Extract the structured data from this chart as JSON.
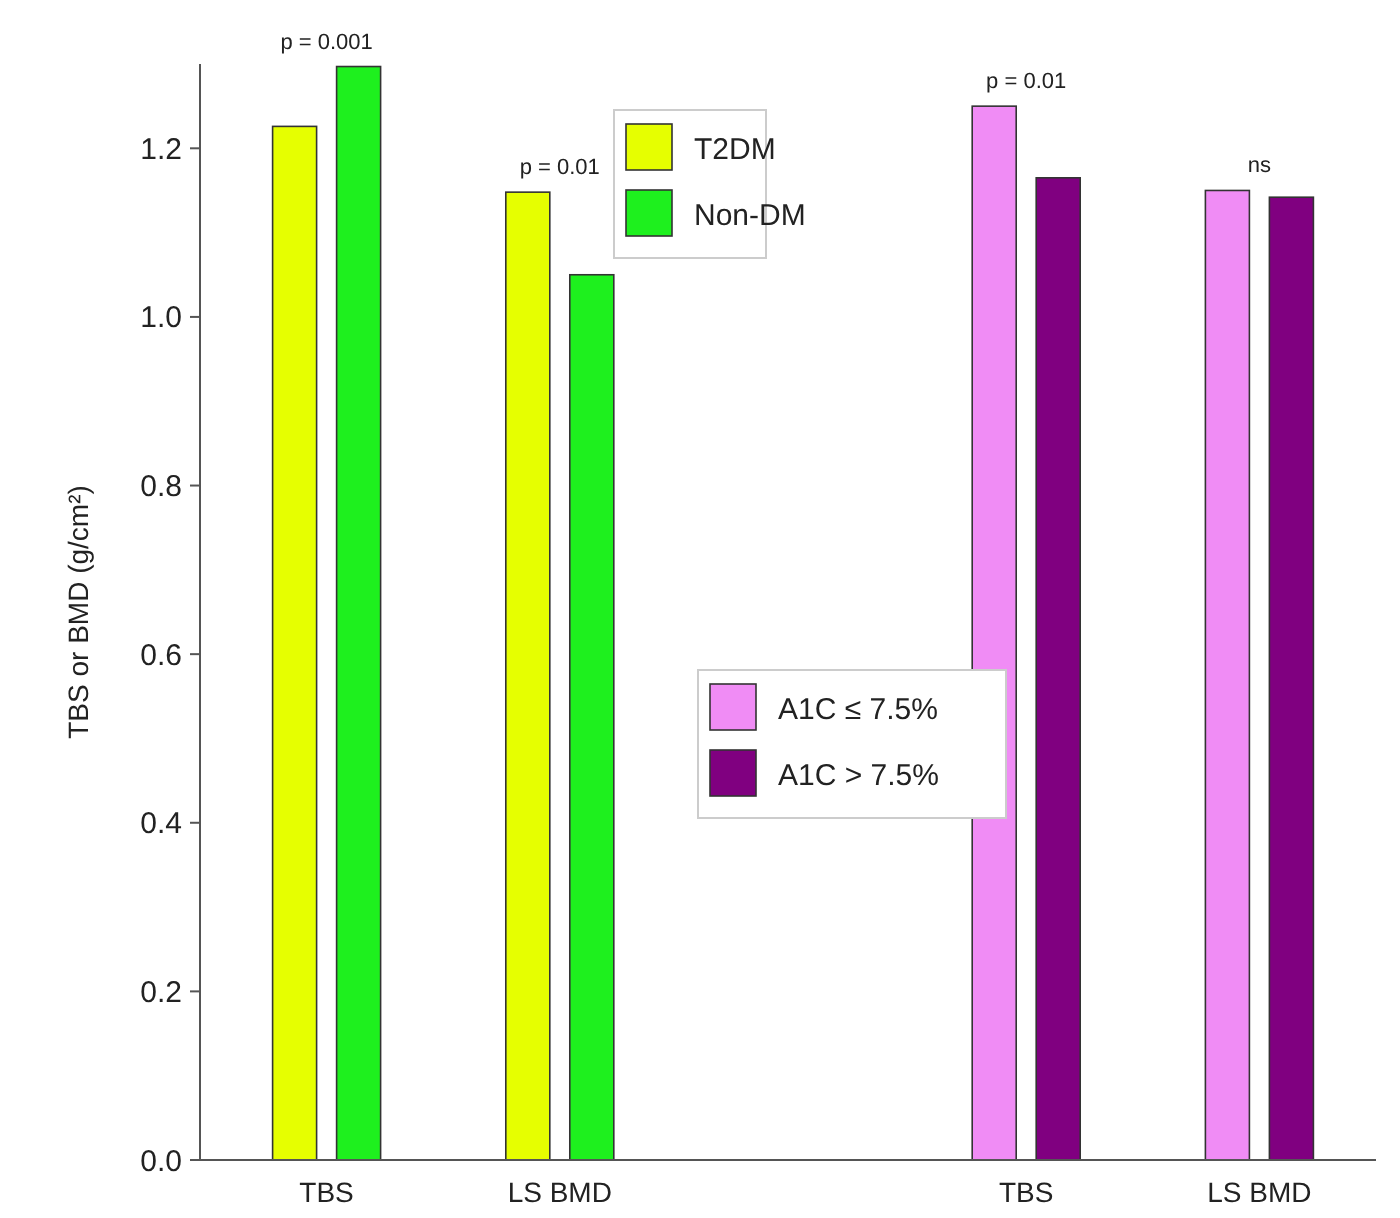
{
  "chart_data": {
    "type": "bar",
    "ylabel": "TBS or BMD (g/cm²)",
    "categories": [
      "TBS",
      "LS BMD",
      null,
      "TBS",
      "LS BMD"
    ],
    "series": [
      {
        "name": "T2DM",
        "color": "#e6ff00",
        "values": [
          1.226,
          1.148,
          null,
          null,
          null
        ]
      },
      {
        "name": "Non-DM",
        "color": "#1ef01e",
        "values": [
          1.297,
          1.05,
          null,
          null,
          null
        ]
      },
      {
        "name": "A1C ≤ 7.5%",
        "color": "#f08cf5",
        "values": [
          null,
          null,
          null,
          1.25,
          1.15
        ]
      },
      {
        "name": "A1C > 7.5%",
        "color": "#800080",
        "values": [
          null,
          null,
          null,
          1.165,
          1.142
        ]
      }
    ],
    "ylim": [
      0,
      1.3
    ],
    "yticks": [
      {
        "value": 0,
        "label": "0.0"
      },
      {
        "value": 0.2,
        "label": "0.2"
      },
      {
        "value": 0.4,
        "label": "0.4"
      },
      {
        "value": 0.6,
        "label": "0.6"
      },
      {
        "value": 0.8,
        "label": "0.8"
      },
      {
        "value": 1,
        "label": "1.0"
      },
      {
        "value": 1.2,
        "label": "1.2"
      }
    ],
    "annotations": [
      "p = 0.001",
      "p = 0.01",
      "p = 0.01",
      "ns"
    ],
    "legend": "top",
    "grid": false
  }
}
